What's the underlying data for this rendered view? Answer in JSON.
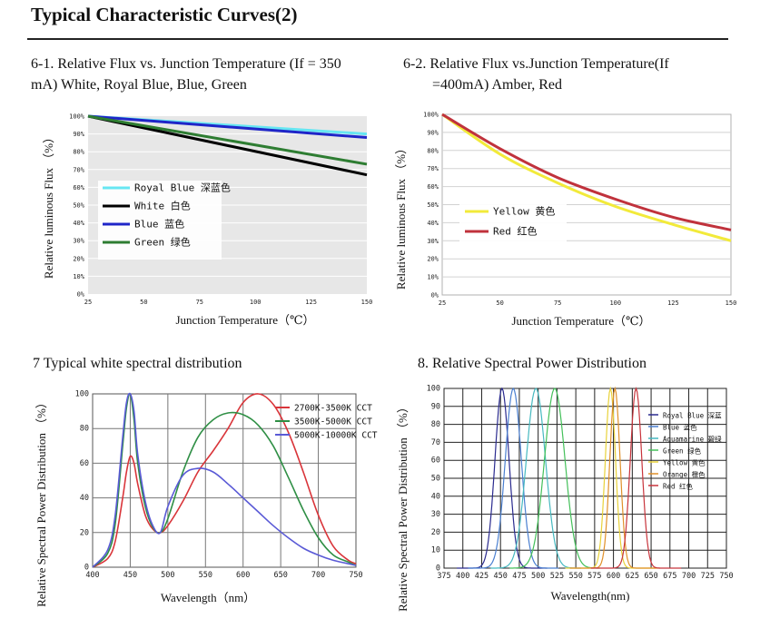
{
  "page": {
    "title": "Typical Characteristic Curves(2)"
  },
  "chart_data": [
    {
      "type": "line",
      "caption_line1": "6-1. Relative Flux vs. Junction Temperature (If = 350",
      "caption_line2": "mA) White, Royal Blue, Blue, Green",
      "xlabel": "Junction Temperature（℃）",
      "ylabel": "Relative luminous Flux （%）",
      "xlim": [
        25,
        150
      ],
      "ylim": [
        0,
        100
      ],
      "xticks": [
        "25",
        "50",
        "75",
        "100",
        "125",
        "150"
      ],
      "yticks": [
        "0%",
        "10%",
        "20%",
        "30%",
        "40%",
        "50%",
        "60%",
        "70%",
        "80%",
        "90%",
        "100%"
      ],
      "x": [
        25,
        150
      ],
      "series": [
        {
          "name": "Royal Blue 深蓝色",
          "color": "#66e6f2",
          "values": [
            100,
            90
          ]
        },
        {
          "name": "White 白色",
          "color": "#000000",
          "values": [
            100,
            67
          ]
        },
        {
          "name": "Blue 蓝色",
          "color": "#1f25c8",
          "values": [
            100,
            88
          ]
        },
        {
          "name": "Green 绿色",
          "color": "#2e7d32",
          "values": [
            100,
            73
          ]
        }
      ]
    },
    {
      "type": "line",
      "caption_line1": "6-2. Relative Flux vs.Junction Temperature(If",
      "caption_line2": "=400mA) Amber, Red",
      "xlabel": "Junction Temperature（℃）",
      "ylabel": "Relative luminous Flux （%）",
      "xlim": [
        25,
        150
      ],
      "ylim": [
        0,
        100
      ],
      "xticks": [
        "25",
        "50",
        "75",
        "100",
        "125",
        "150"
      ],
      "yticks": [
        "0%",
        "10%",
        "20%",
        "30%",
        "40%",
        "50%",
        "60%",
        "70%",
        "80%",
        "90%",
        "100%"
      ],
      "x": [
        25,
        50,
        75,
        100,
        125,
        150
      ],
      "series": [
        {
          "name": "Yellow 黄色",
          "color": "#f2ea3a",
          "values": [
            100,
            78,
            62,
            49,
            39,
            30
          ]
        },
        {
          "name": "Red 红色",
          "color": "#c0323c",
          "values": [
            100,
            81,
            65,
            53,
            43,
            36
          ]
        }
      ]
    },
    {
      "type": "line",
      "caption": "7 Typical white spectral distribution",
      "xlabel": "Wavelength（nm）",
      "ylabel": "Relative Spectral Power Distribution （%）",
      "xlim": [
        400,
        750
      ],
      "ylim": [
        0,
        100
      ],
      "xticks": [
        "400",
        "450",
        "500",
        "550",
        "600",
        "650",
        "700",
        "750"
      ],
      "yticks": [
        "0",
        "20",
        "40",
        "60",
        "80",
        "100"
      ],
      "x": [
        400,
        420,
        430,
        440,
        445,
        450,
        455,
        460,
        470,
        480,
        490,
        500,
        520,
        540,
        560,
        580,
        600,
        620,
        640,
        660,
        680,
        700,
        720,
        740,
        750
      ],
      "series": [
        {
          "name": "2700K-3500K CCT",
          "color": "#d9353a",
          "values": [
            0,
            5,
            15,
            40,
            55,
            64,
            60,
            48,
            30,
            22,
            20,
            24,
            38,
            55,
            67,
            80,
            95,
            100,
            94,
            78,
            55,
            30,
            12,
            4,
            2
          ]
        },
        {
          "name": "3500K-5000K CCT",
          "color": "#2f8f45",
          "values": [
            0,
            8,
            25,
            70,
            92,
            100,
            85,
            60,
            35,
            23,
            20,
            28,
            55,
            75,
            85,
            89,
            88,
            82,
            70,
            52,
            33,
            17,
            7,
            3,
            1
          ]
        },
        {
          "name": "5000K-10000K CCT",
          "color": "#5a5ad6",
          "values": [
            0,
            10,
            30,
            75,
            95,
            100,
            90,
            65,
            38,
            24,
            20,
            35,
            53,
            57,
            55,
            48,
            40,
            32,
            24,
            17,
            11,
            7,
            4,
            2,
            1
          ]
        }
      ]
    },
    {
      "type": "line",
      "caption": "8. Relative Spectral Power Distribution",
      "xlabel": "Wavelength(nm)",
      "ylabel": "Relative Spectral Power Distribution （%）",
      "xlim": [
        375,
        750
      ],
      "ylim": [
        0,
        100
      ],
      "xticks": [
        "375",
        "400",
        "425",
        "450",
        "475",
        "500",
        "525",
        "550",
        "575",
        "600",
        "625",
        "650",
        "675",
        "700",
        "725",
        "750"
      ],
      "yticks": [
        "0",
        "10",
        "20",
        "30",
        "40",
        "50",
        "60",
        "70",
        "80",
        "90",
        "100"
      ],
      "series": [
        {
          "name": "Royal Blue 深蓝",
          "color": "#2b2b8f",
          "peak": 452,
          "fwhm": 22
        },
        {
          "name": "Blue 蓝色",
          "color": "#4a7fd0",
          "peak": 467,
          "fwhm": 25
        },
        {
          "name": "Aquamarine 碧绿",
          "color": "#46b9c0",
          "peak": 497,
          "fwhm": 30
        },
        {
          "name": "Green 绿色",
          "color": "#44c05a",
          "peak": 522,
          "fwhm": 32
        },
        {
          "name": "Yellow 黄色",
          "color": "#e8d23a",
          "peak": 596,
          "fwhm": 16
        },
        {
          "name": "Orange 橙色",
          "color": "#e0902a",
          "peak": 602,
          "fwhm": 16
        },
        {
          "name": "Red 红色",
          "color": "#c8343c",
          "peak": 630,
          "fwhm": 18
        }
      ]
    }
  ]
}
